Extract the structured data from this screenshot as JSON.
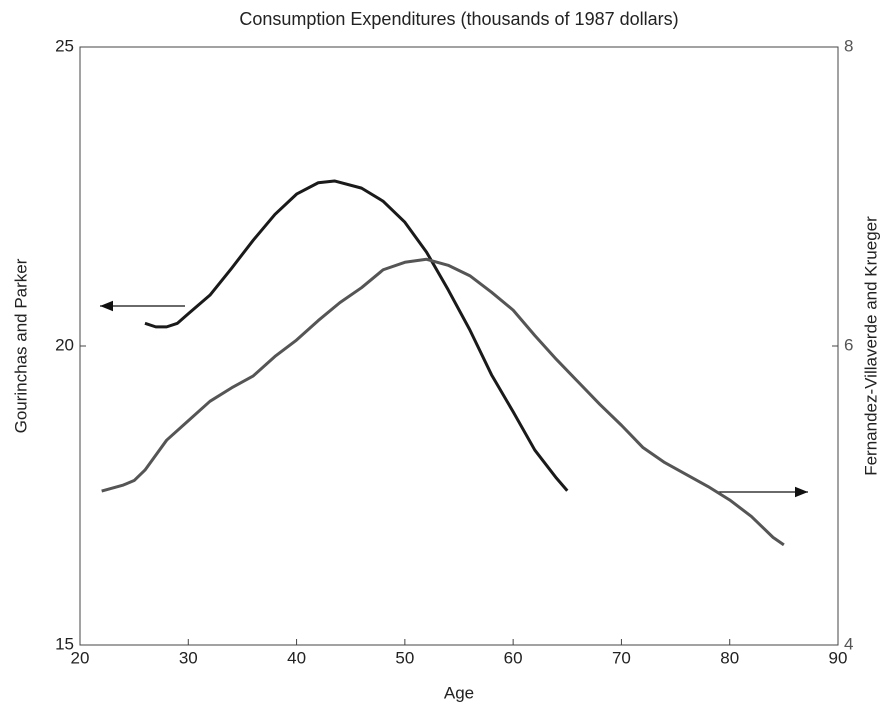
{
  "chart_data": {
    "type": "line",
    "title": "Consumption Expenditures (thousands of 1987 dollars)",
    "xlabel": "Age",
    "ylabel": "Gourinchas and Parker",
    "y2label": "Fernandez-Villaverde and Krueger",
    "xlim": [
      20,
      90
    ],
    "xticks": [
      20,
      30,
      40,
      50,
      60,
      70,
      80,
      90
    ],
    "ylim": [
      15,
      25
    ],
    "yticks": [
      15,
      20,
      25
    ],
    "y2lim": [
      4,
      8
    ],
    "y2ticks": [
      4,
      6,
      8
    ],
    "series": [
      {
        "color": "#1a1a1a",
        "axis": "y",
        "x": [
          26,
          27,
          28,
          29,
          30,
          32,
          34,
          36,
          38,
          40,
          42,
          43.5,
          46,
          48,
          50,
          52,
          54,
          56,
          58,
          60,
          62,
          64,
          65
        ],
        "values": [
          20.38,
          20.32,
          20.32,
          20.38,
          20.54,
          20.85,
          21.3,
          21.77,
          22.2,
          22.54,
          22.73,
          22.76,
          22.64,
          22.42,
          22.07,
          21.57,
          20.94,
          20.27,
          19.52,
          18.9,
          18.26,
          17.79,
          17.58
        ]
      },
      {
        "color": "#555555",
        "axis": "y2",
        "x": [
          22,
          24,
          25,
          26,
          28,
          30,
          32,
          34,
          36,
          38,
          40,
          42,
          44,
          46,
          48,
          50,
          52,
          54,
          56,
          58,
          60,
          62,
          64,
          66,
          68,
          70,
          72,
          74,
          76,
          78,
          80,
          82,
          84,
          85
        ],
        "values": [
          5.03,
          5.07,
          5.1,
          5.17,
          5.37,
          5.5,
          5.63,
          5.72,
          5.8,
          5.93,
          6.04,
          6.17,
          6.29,
          6.39,
          6.51,
          6.56,
          6.58,
          6.54,
          6.47,
          6.36,
          6.24,
          6.07,
          5.91,
          5.76,
          5.61,
          5.47,
          5.32,
          5.22,
          5.14,
          5.06,
          4.97,
          4.86,
          4.72,
          4.67
        ]
      }
    ]
  }
}
